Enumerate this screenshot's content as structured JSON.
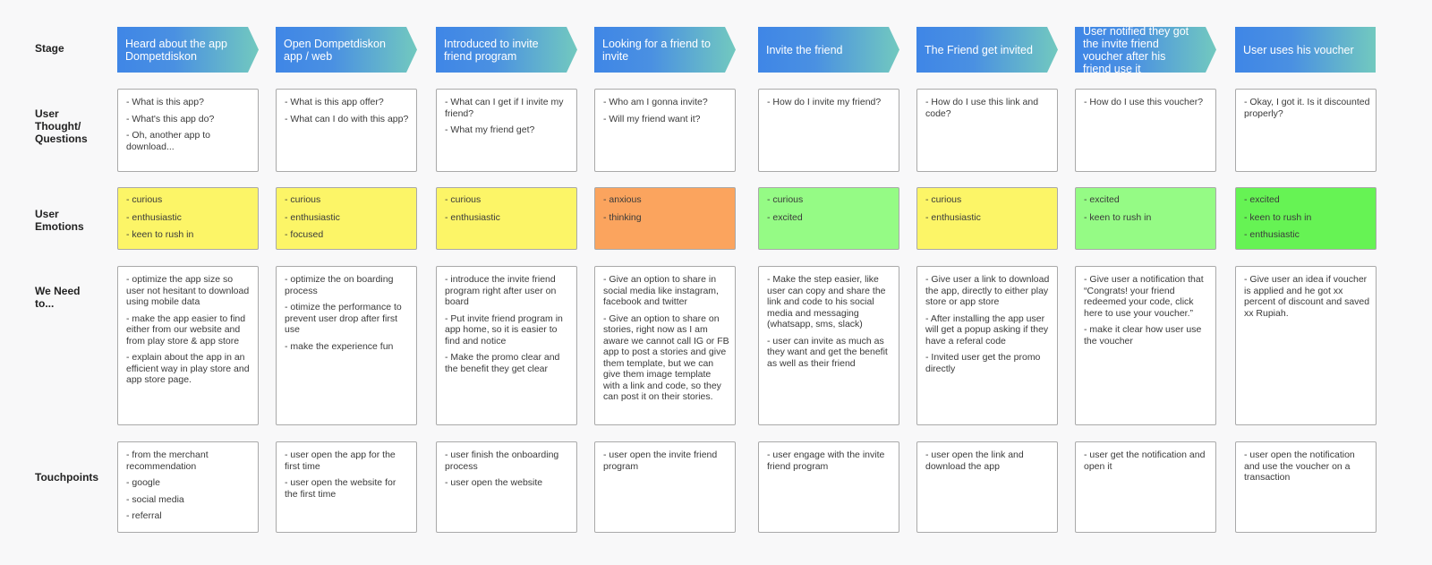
{
  "row_labels": {
    "stage": "Stage",
    "thought": "User Thought/ Questions",
    "emotions": "User Emotions",
    "need": "We Need to...",
    "touchpoints": "Touchpoints"
  },
  "columns": [
    {
      "stage": "Heard about the app Dompetdiskon",
      "thoughts": [
        "- What is this app?",
        "- What's this app do?",
        "- Oh, another app to download..."
      ],
      "emotions": [
        "- curious",
        "- enthusiastic",
        "- keen to rush in"
      ],
      "emotion_color": "#fcf567",
      "needs": [
        "- optimize the app size so user not hesitant to download using mobile data",
        "- make the app easier to find either from our website and from play store & app store",
        "- explain about the app in an efficient way in play store and app store page."
      ],
      "touchpoints": [
        "- from the merchant recommendation",
        "- google",
        "- social media",
        "- referral"
      ]
    },
    {
      "stage": "Open Dompetdiskon app / web",
      "thoughts": [
        "- What is this app offer?",
        "- What can I do with this app?"
      ],
      "emotions": [
        "- curious",
        "- enthusiastic",
        "- focused"
      ],
      "emotion_color": "#fcf567",
      "needs": [
        "- optimize the on boarding process",
        "- otimize the performance to prevent user drop after first use",
        "- make the experience fun"
      ],
      "touchpoints": [
        "- user open the app for the first time",
        "- user open the website for the first time"
      ]
    },
    {
      "stage": "Introduced to invite friend program",
      "thoughts": [
        "- What can I get if I invite my friend?",
        "- What my friend get?"
      ],
      "emotions": [
        "- curious",
        "- enthusiastic"
      ],
      "emotion_color": "#fcf567",
      "needs": [
        "- introduce the invite friend program right after user on board",
        "- Put invite friend program in app home, so it is easier to find and notice",
        "- Make the promo clear and the benefit they get clear"
      ],
      "touchpoints": [
        "- user finish the onboarding process",
        "- user open the website"
      ]
    },
    {
      "stage": "Looking for a friend to invite",
      "thoughts": [
        "- Who am I gonna invite?",
        "- Will my friend want it?"
      ],
      "emotions": [
        "- anxious",
        "- thinking"
      ],
      "emotion_color": "#fba45e",
      "needs": [
        "- Give an option to share in social media like instagram, facebook and twitter",
        "- Give an option to share on stories, right now as I am aware we cannot call IG or FB app to post a stories and give them template,  but we can give them image template with a link and code, so they can post it on their stories."
      ],
      "touchpoints": [
        "- user open the invite friend program"
      ]
    },
    {
      "stage": "Invite the friend",
      "thoughts": [
        "- How do I invite my friend?"
      ],
      "emotions": [
        "- curious",
        "- excited"
      ],
      "emotion_color": "#95fb85",
      "needs": [
        "- Make the step easier, like user can copy and share the link and code to his social media and messaging (whatsapp, sms, slack)",
        "- user can invite as much as they want and get the benefit as well as their friend"
      ],
      "touchpoints": [
        "- user engage with the invite friend program"
      ]
    },
    {
      "stage": "The Friend get invited",
      "thoughts": [
        "- How do I use this link and code?"
      ],
      "emotions": [
        "- curious",
        "- enthusiastic"
      ],
      "emotion_color": "#fcf567",
      "needs": [
        "- Give user a link to download the app, directly to either play store or app store",
        "- After installing the app user will get a popup asking if they have a referal code",
        "- Invited user get the promo directly"
      ],
      "touchpoints": [
        "- user open the link and download the app"
      ]
    },
    {
      "stage": "User notified they got the invite friend voucher after his friend use it",
      "thoughts": [
        "- How do I use this voucher?"
      ],
      "emotions": [
        "- excited",
        "- keen to rush in"
      ],
      "emotion_color": "#95fb85",
      "needs": [
        "- Give user a notification that “Congrats! your friend redeemed your code, click here to use your voucher.”",
        "- make it clear how user use the voucher"
      ],
      "touchpoints": [
        "- user get the notification and open it"
      ]
    },
    {
      "stage": "User uses his voucher",
      "thoughts": [
        "- Okay, I got it. Is it discounted properly?"
      ],
      "emotions": [
        "- excited",
        "- keen to rush in",
        "- enthusiastic"
      ],
      "emotion_color": "#66f354",
      "needs": [
        "- Give user an idea if voucher is applied and he got xx percent of discount and saved xx Rupiah."
      ],
      "touchpoints": [
        "- user open the notification and use the voucher on a transaction"
      ]
    }
  ]
}
